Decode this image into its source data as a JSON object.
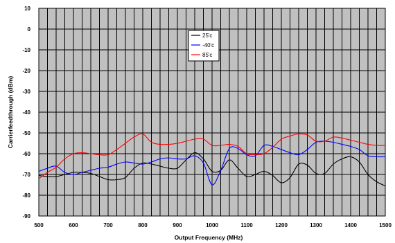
{
  "chart_data": {
    "type": "line",
    "xlabel": "Output Frequency (MHz)",
    "ylabel": "Carrierfeedthrough (dBm)",
    "xlim": [
      500,
      1500
    ],
    "ylim": [
      -90,
      10
    ],
    "xticks": [
      "500",
      "600",
      "700",
      "800",
      "900",
      "1000",
      "1100",
      "1200",
      "1300",
      "1400",
      "1500"
    ],
    "yticks": [
      "10",
      "0",
      "-10",
      "-20",
      "-30",
      "-40",
      "-50",
      "-60",
      "-70",
      "-80",
      "-90"
    ],
    "x_minor_step": 25,
    "grid": true,
    "plot_background": "#c0c0c0",
    "legend_position": "top-center",
    "series": [
      {
        "name": "25'c",
        "color": "#000000",
        "x": [
          500,
          525,
          550,
          575,
          600,
          625,
          650,
          675,
          700,
          725,
          750,
          775,
          800,
          825,
          850,
          875,
          900,
          925,
          950,
          975,
          1000,
          1025,
          1050,
          1075,
          1100,
          1125,
          1150,
          1175,
          1200,
          1225,
          1250,
          1275,
          1300,
          1325,
          1350,
          1375,
          1400,
          1425,
          1450,
          1475,
          1500
        ],
        "values": [
          -70.5,
          -71,
          -71,
          -70,
          -69,
          -69,
          -69.5,
          -71,
          -72.5,
          -72.5,
          -71.5,
          -67,
          -64.5,
          -65,
          -66,
          -67,
          -67,
          -63,
          -59.5,
          -62.5,
          -68.5,
          -68,
          -63,
          -67,
          -71,
          -70,
          -68.5,
          -70.5,
          -74,
          -71.5,
          -65,
          -65.5,
          -69.5,
          -69.5,
          -65,
          -62.5,
          -61.5,
          -64,
          -70,
          -73.5,
          -75.5
        ]
      },
      {
        "name": "-40'c",
        "color": "#0000ff",
        "x": [
          500,
          525,
          550,
          575,
          600,
          625,
          650,
          675,
          700,
          725,
          750,
          775,
          800,
          825,
          850,
          875,
          900,
          925,
          950,
          975,
          1000,
          1025,
          1050,
          1075,
          1100,
          1125,
          1150,
          1175,
          1200,
          1225,
          1250,
          1275,
          1300,
          1325,
          1350,
          1375,
          1400,
          1425,
          1450,
          1475,
          1500
        ],
        "values": [
          -68.5,
          -67,
          -66,
          -69,
          -70,
          -69,
          -68,
          -67,
          -66.5,
          -65,
          -64,
          -64.5,
          -65,
          -64,
          -62.5,
          -62,
          -62.5,
          -62.5,
          -61,
          -64.5,
          -75,
          -68,
          -57.5,
          -57.5,
          -60.5,
          -61,
          -56,
          -56.5,
          -58,
          -59.5,
          -60.5,
          -58,
          -54.5,
          -54,
          -54.5,
          -55.5,
          -56.5,
          -58,
          -61,
          -61.5,
          -61.5
        ]
      },
      {
        "name": "85'c",
        "color": "#ff0000",
        "x": [
          500,
          525,
          550,
          575,
          600,
          625,
          650,
          675,
          700,
          725,
          750,
          775,
          800,
          825,
          850,
          875,
          900,
          925,
          950,
          975,
          1000,
          1025,
          1050,
          1075,
          1100,
          1125,
          1150,
          1175,
          1200,
          1225,
          1250,
          1275,
          1300,
          1325,
          1350,
          1375,
          1400,
          1425,
          1450,
          1475,
          1500
        ],
        "values": [
          -72,
          -69,
          -66.5,
          -62.5,
          -60,
          -59.5,
          -60,
          -60.5,
          -60.5,
          -58,
          -55,
          -52,
          -50.5,
          -54.5,
          -55.5,
          -55.5,
          -55,
          -54,
          -53,
          -53,
          -56,
          -56,
          -55.5,
          -56.5,
          -60,
          -60.5,
          -60,
          -57,
          -53,
          -51.5,
          -50.5,
          -51,
          -54,
          -54,
          -52,
          -52.5,
          -53.5,
          -54.5,
          -55.5,
          -56,
          -56
        ]
      }
    ]
  }
}
